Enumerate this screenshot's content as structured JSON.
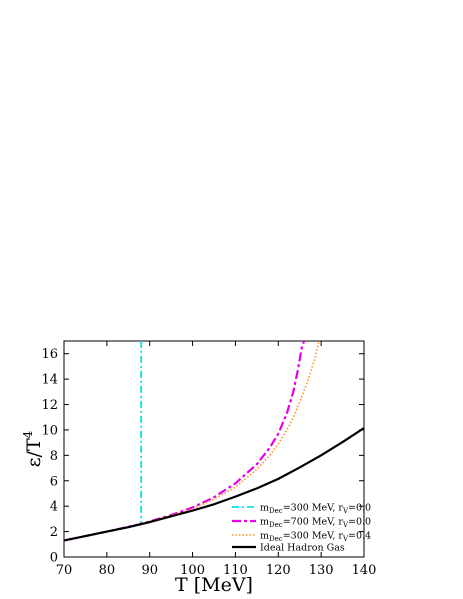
{
  "chart_data": {
    "type": "line",
    "xlabel": "T [MeV]",
    "ylabel": {
      "base": "ε/T",
      "sup": "4"
    },
    "xlim": [
      70,
      140
    ],
    "ylim": [
      0,
      17
    ],
    "xticks": [
      70,
      80,
      90,
      100,
      110,
      120,
      130,
      140
    ],
    "yticks": [
      0,
      2,
      4,
      6,
      8,
      10,
      12,
      14,
      16
    ],
    "grid": false,
    "legend_position": "bottom-right",
    "series": [
      {
        "legend": {
          "m": "m",
          "msub": "Dec",
          "rest": "=300 MeV, r",
          "rsub": "V",
          "end": "=0.0"
        },
        "color": "#00e5e5",
        "dash": "dash-dot",
        "points": [
          [
            70,
            1.3
          ],
          [
            75,
            1.65
          ],
          [
            80,
            2.0
          ],
          [
            85,
            2.35
          ],
          [
            87.5,
            2.55
          ],
          [
            88,
            2.6
          ],
          [
            88,
            17
          ]
        ]
      },
      {
        "legend": {
          "m": "m",
          "msub": "Dec",
          "rest": "=700 MeV, r",
          "rsub": "V",
          "end": "=0.0"
        },
        "color": "#e600e6",
        "dash": "long-dash-dot",
        "points": [
          [
            70,
            1.3
          ],
          [
            80,
            2.0
          ],
          [
            88,
            2.6
          ],
          [
            95,
            3.3
          ],
          [
            100,
            3.9
          ],
          [
            105,
            4.7
          ],
          [
            110,
            5.8
          ],
          [
            115,
            7.3
          ],
          [
            118,
            8.6
          ],
          [
            120,
            9.7
          ],
          [
            122,
            11.3
          ],
          [
            123.5,
            13.0
          ],
          [
            124.5,
            14.6
          ],
          [
            125.5,
            16.5
          ],
          [
            126,
            17
          ]
        ]
      },
      {
        "legend": {
          "m": "m",
          "msub": "Dec",
          "rest": "=300 MeV, r",
          "rsub": "V",
          "end": "=0.4"
        },
        "color": "#ff8c1a",
        "dash": "dotted",
        "points": [
          [
            70,
            1.3
          ],
          [
            80,
            2.0
          ],
          [
            88,
            2.6
          ],
          [
            95,
            3.25
          ],
          [
            100,
            3.8
          ],
          [
            105,
            4.55
          ],
          [
            110,
            5.5
          ],
          [
            115,
            6.9
          ],
          [
            118,
            8.0
          ],
          [
            120,
            8.9
          ],
          [
            123,
            10.6
          ],
          [
            125,
            12.2
          ],
          [
            127,
            14.0
          ],
          [
            128.5,
            15.6
          ],
          [
            129.5,
            17
          ]
        ]
      },
      {
        "legend": {
          "plain": "Ideal Hadron Gas"
        },
        "color": "#000000",
        "dash": "solid",
        "points": [
          [
            70,
            1.3
          ],
          [
            75,
            1.65
          ],
          [
            80,
            2.0
          ],
          [
            85,
            2.35
          ],
          [
            90,
            2.75
          ],
          [
            95,
            3.2
          ],
          [
            100,
            3.65
          ],
          [
            105,
            4.15
          ],
          [
            110,
            4.75
          ],
          [
            115,
            5.4
          ],
          [
            120,
            6.15
          ],
          [
            125,
            7.05
          ],
          [
            130,
            8.0
          ],
          [
            135,
            9.05
          ],
          [
            140,
            10.15
          ]
        ]
      }
    ]
  }
}
